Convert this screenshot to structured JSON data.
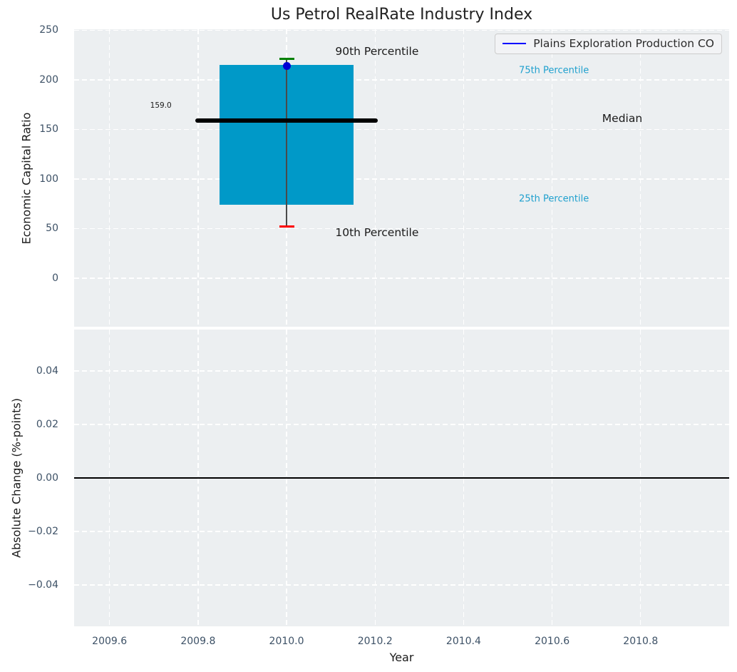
{
  "title": "Us Petrol RealRate Industry Index",
  "legend": {
    "label": "Plains Exploration Production CO",
    "line_color": "#0000ff"
  },
  "colors": {
    "figure_bg": "#ffffff",
    "axes_bg": "#eceff1",
    "grid": "#ffffff",
    "box_fill": "#0099c8",
    "median_line": "#000000",
    "whisker": "#4a4a4a",
    "p90_cap": "#008000",
    "p10_cap": "#fe0000",
    "company_dot": "#0000d5",
    "tick_label": "#3d5166",
    "axis_label": "#1a1a1a",
    "percentile_text": "#1fa0ce",
    "zero_line": "#000000"
  },
  "chart_data": [
    {
      "type": "boxplot",
      "title": "Us Petrol RealRate Industry Index",
      "ylabel": "Economic Capital Ratio",
      "ylim": [
        -49,
        251
      ],
      "xlim": [
        2009.52,
        2011.0
      ],
      "yticks": [
        250,
        200,
        150,
        100,
        50,
        0
      ],
      "ytick_labels": [
        "250",
        "200",
        "150",
        "100",
        "50",
        "0"
      ],
      "grid": true,
      "legend_position": "upper right",
      "box": {
        "x": 2010.0,
        "box_halfwidth_years": 0.152,
        "median_halfwidth_years": 0.206,
        "p10": 52,
        "p25": 74,
        "median": 159,
        "p75": 215,
        "p90": 221,
        "median_label": "159.0"
      },
      "series": [
        {
          "name": "Plains Exploration Production CO",
          "type": "scatter",
          "x": [
            2010.0
          ],
          "y": [
            214
          ]
        }
      ],
      "annotations": [
        {
          "text": "90th Percentile",
          "x": 2010.11,
          "y": 229,
          "ha": "left",
          "size": 15.5,
          "color": "#1a1a1a"
        },
        {
          "text": "10th Percentile",
          "x": 2010.11,
          "y": 46,
          "ha": "left",
          "size": 15.5,
          "color": "#1a1a1a"
        },
        {
          "text": "75th Percentile",
          "x": 2010.525,
          "y": 209,
          "ha": "left",
          "size": 13,
          "color": "#1fa0ce"
        },
        {
          "text": "25th Percentile",
          "x": 2010.525,
          "y": 80,
          "ha": "left",
          "size": 13,
          "color": "#1fa0ce"
        },
        {
          "text": "Median",
          "x": 2010.713,
          "y": 161,
          "ha": "left",
          "size": 15.5,
          "color": "#1a1a1a"
        },
        {
          "text": "159.0",
          "x": 2009.716,
          "y": 174,
          "ha": "center",
          "size": 10.5,
          "color": "#1a1a1a"
        }
      ]
    },
    {
      "type": "line",
      "xlabel": "Year",
      "ylabel": "Absolute Change (%-points)",
      "ylim": [
        -0.0555,
        0.0555
      ],
      "xlim": [
        2009.52,
        2011.0
      ],
      "yticks": [
        0.04,
        0.02,
        0.0,
        -0.02,
        -0.04
      ],
      "ytick_labels": [
        "0.04",
        "0.02",
        "0.00",
        "−0.02",
        "−0.04"
      ],
      "xticks": [
        2009.6,
        2009.8,
        2010.0,
        2010.2,
        2010.4,
        2010.6,
        2010.8
      ],
      "xtick_labels": [
        "2009.6",
        "2009.8",
        "2010.0",
        "2010.2",
        "2010.4",
        "2010.6",
        "2010.8"
      ],
      "grid": true,
      "zero_line_y": 0.0,
      "series": []
    }
  ]
}
